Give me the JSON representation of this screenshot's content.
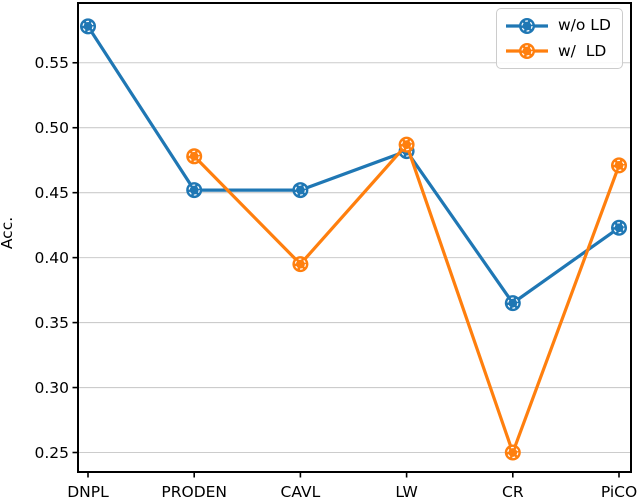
{
  "chart_data": {
    "type": "line",
    "title": "",
    "xlabel": "",
    "ylabel": "Acc.",
    "categories": [
      "DNPL",
      "PRODEN",
      "CAVL",
      "LW",
      "CR",
      "PiCO"
    ],
    "series": [
      {
        "name": "w/o LD",
        "color": "#1f77b4",
        "values": [
          0.578,
          0.452,
          0.452,
          0.482,
          0.365,
          0.423
        ]
      },
      {
        "name": "w/  LD",
        "color": "#ff7f0e",
        "values": [
          null,
          0.478,
          0.395,
          0.487,
          0.25,
          0.471
        ]
      }
    ],
    "yticks": [
      0.25,
      0.3,
      0.35,
      0.4,
      0.45,
      0.5,
      0.55
    ],
    "ytick_labels": [
      "0.25",
      "0.30",
      "0.35",
      "0.40",
      "0.45",
      "0.50",
      "0.55"
    ],
    "ylim": [
      0.235,
      0.596
    ],
    "grid": true,
    "legend_position": "upper right",
    "marker": "circle-with-dashed-white-ring"
  },
  "colors": {
    "grid": "#cccccc",
    "spine": "#000000",
    "marker_ring": "#ffffff",
    "legend_border": "#cccccc",
    "background": "#ffffff"
  }
}
